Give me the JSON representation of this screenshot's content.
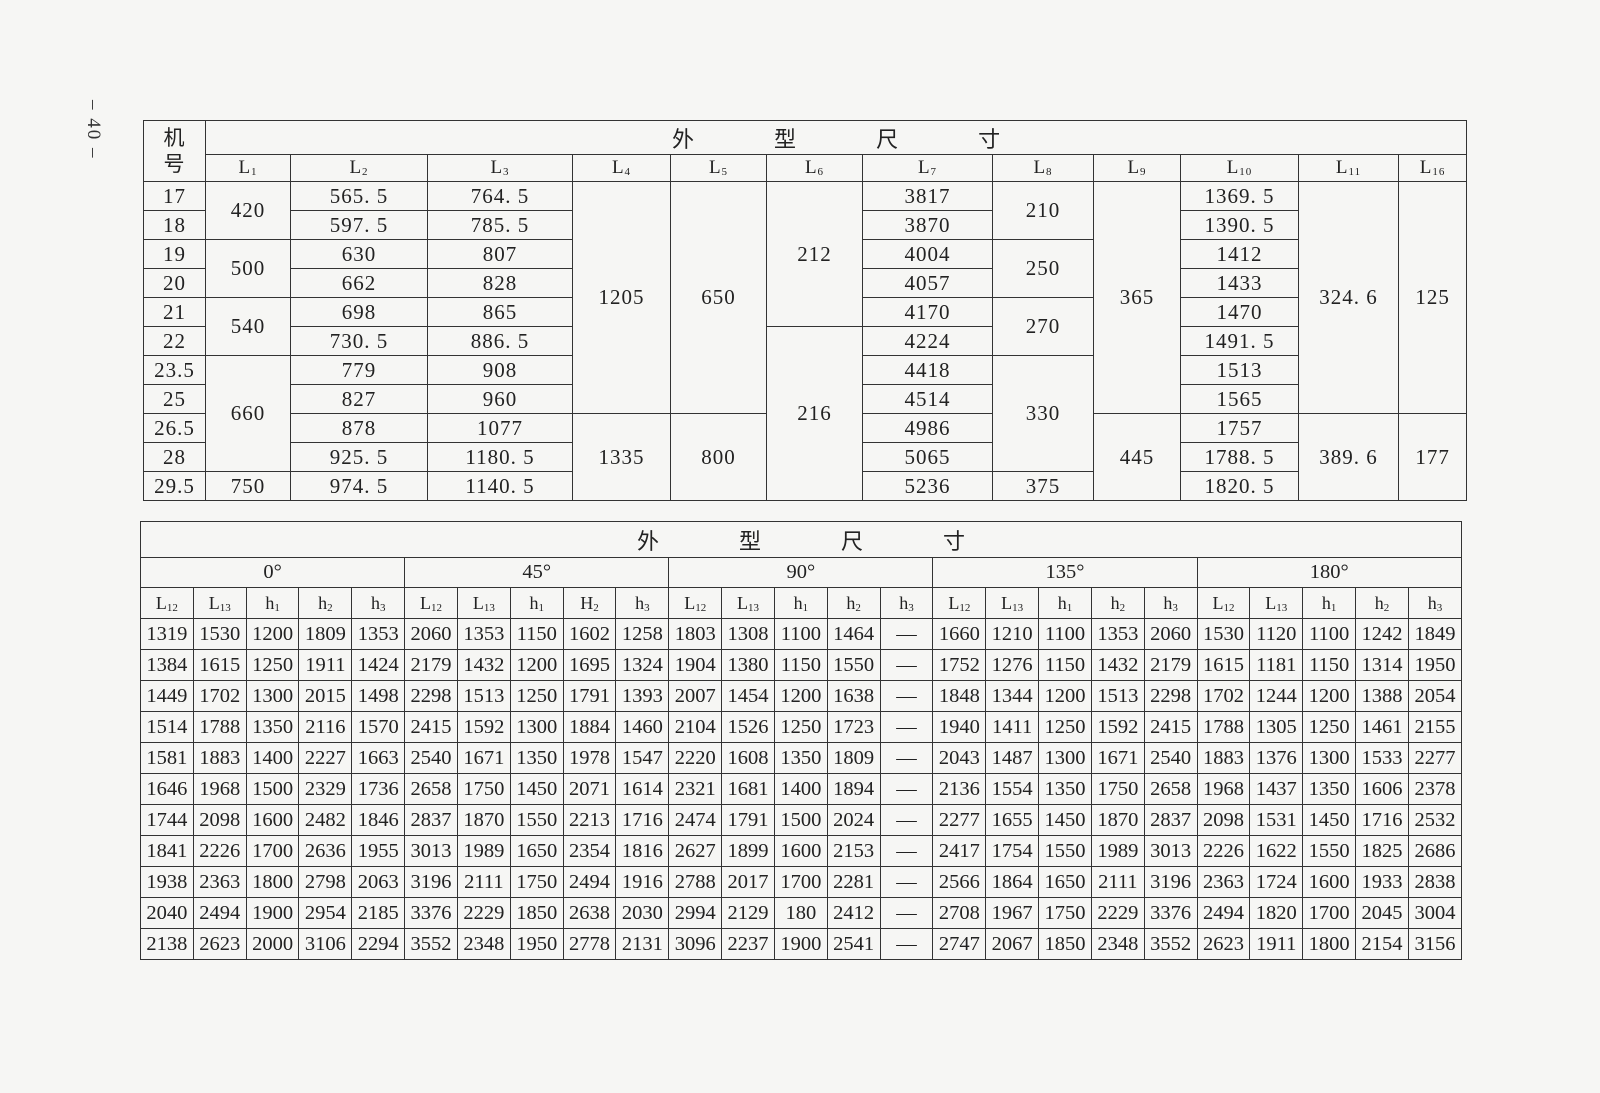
{
  "page_number": "– 40 –",
  "top_table": {
    "row_header_label": [
      "机",
      "号"
    ],
    "title": [
      "外",
      "型",
      "尺",
      "寸"
    ],
    "machine_numbers": [
      "17",
      "18",
      "19",
      "20",
      "21",
      "22",
      "23.5",
      "25",
      "26.5",
      "28",
      "29.5"
    ],
    "columns": [
      {
        "header": {
          "base": "L",
          "sub": "1"
        },
        "cells": [
          {
            "v": "420",
            "span": 2
          },
          {
            "v": "500",
            "span": 2
          },
          {
            "v": "540",
            "span": 2
          },
          {
            "v": "660",
            "span": 4
          },
          {
            "v": "750",
            "span": 1
          }
        ]
      },
      {
        "header": {
          "base": "L",
          "sub": "2"
        },
        "cells": [
          {
            "v": "565. 5"
          },
          {
            "v": "597. 5"
          },
          {
            "v": "630"
          },
          {
            "v": "662"
          },
          {
            "v": "698"
          },
          {
            "v": "730. 5"
          },
          {
            "v": "779"
          },
          {
            "v": "827"
          },
          {
            "v": "878"
          },
          {
            "v": "925. 5"
          },
          {
            "v": "974. 5"
          }
        ]
      },
      {
        "header": {
          "base": "L",
          "sub": "3"
        },
        "cells": [
          {
            "v": "764. 5"
          },
          {
            "v": "785. 5"
          },
          {
            "v": "807"
          },
          {
            "v": "828"
          },
          {
            "v": "865"
          },
          {
            "v": "886. 5"
          },
          {
            "v": "908"
          },
          {
            "v": "960"
          },
          {
            "v": "1077"
          },
          {
            "v": "1180. 5"
          },
          {
            "v": "1140. 5"
          }
        ]
      },
      {
        "header": {
          "base": "L",
          "sub": "4"
        },
        "cells": [
          {
            "v": "1205",
            "span": 8
          },
          {
            "v": "1335",
            "span": 3
          }
        ]
      },
      {
        "header": {
          "base": "L",
          "sub": "5"
        },
        "cells": [
          {
            "v": "650",
            "span": 8
          },
          {
            "v": "800",
            "span": 3
          }
        ]
      },
      {
        "header": {
          "base": "L",
          "sub": "6"
        },
        "cells": [
          {
            "v": "212",
            "span": 5
          },
          {
            "v": "216",
            "span": 6
          }
        ]
      },
      {
        "header": {
          "base": "L",
          "sub": "7"
        },
        "cells": [
          {
            "v": "3817"
          },
          {
            "v": "3870"
          },
          {
            "v": "4004"
          },
          {
            "v": "4057"
          },
          {
            "v": "4170"
          },
          {
            "v": "4224"
          },
          {
            "v": "4418"
          },
          {
            "v": "4514"
          },
          {
            "v": "4986"
          },
          {
            "v": "5065"
          },
          {
            "v": "5236"
          }
        ]
      },
      {
        "header": {
          "base": "L",
          "sub": "8"
        },
        "cells": [
          {
            "v": "210",
            "span": 2
          },
          {
            "v": "250",
            "span": 2
          },
          {
            "v": "270",
            "span": 2
          },
          {
            "v": "330",
            "span": 4
          },
          {
            "v": "375",
            "span": 1
          }
        ]
      },
      {
        "header": {
          "base": "L",
          "sub": "9"
        },
        "cells": [
          {
            "v": "365",
            "span": 8
          },
          {
            "v": "445",
            "span": 3
          }
        ]
      },
      {
        "header": {
          "base": "L",
          "sub": "10"
        },
        "cells": [
          {
            "v": "1369. 5"
          },
          {
            "v": "1390. 5"
          },
          {
            "v": "1412"
          },
          {
            "v": "1433"
          },
          {
            "v": "1470"
          },
          {
            "v": "1491. 5"
          },
          {
            "v": "1513"
          },
          {
            "v": "1565"
          },
          {
            "v": "1757"
          },
          {
            "v": "1788. 5"
          },
          {
            "v": "1820. 5"
          }
        ]
      },
      {
        "header": {
          "base": "L",
          "sub": "11"
        },
        "cells": [
          {
            "v": "324. 6",
            "span": 8
          },
          {
            "v": "389. 6",
            "span": 3
          }
        ]
      },
      {
        "header": {
          "base": "L",
          "sub": "16"
        },
        "cells": [
          {
            "v": "125",
            "span": 8
          },
          {
            "v": "177",
            "span": 3
          }
        ]
      }
    ]
  },
  "bottom_table": {
    "title": [
      "外",
      "型",
      "尺",
      "寸"
    ],
    "groups": [
      {
        "angle": "0°",
        "headers": [
          {
            "base": "L",
            "sub": "12"
          },
          {
            "base": "L",
            "sub": "13"
          },
          {
            "base": "h",
            "sub": "1"
          },
          {
            "base": "h",
            "sub": "2"
          },
          {
            "base": "h",
            "sub": "3"
          }
        ]
      },
      {
        "angle": "45°",
        "headers": [
          {
            "base": "L",
            "sub": "12"
          },
          {
            "base": "L",
            "sub": "13"
          },
          {
            "base": "h",
            "sub": "1"
          },
          {
            "base": "H",
            "sub": "2"
          },
          {
            "base": "h",
            "sub": "3"
          }
        ]
      },
      {
        "angle": "90°",
        "headers": [
          {
            "base": "L",
            "sub": "12"
          },
          {
            "base": "L",
            "sub": "13"
          },
          {
            "base": "h",
            "sub": "1"
          },
          {
            "base": "h",
            "sub": "2"
          },
          {
            "base": "h",
            "sub": "3"
          }
        ]
      },
      {
        "angle": "135°",
        "headers": [
          {
            "base": "L",
            "sub": "12"
          },
          {
            "base": "L",
            "sub": "13"
          },
          {
            "base": "h",
            "sub": "1"
          },
          {
            "base": "h",
            "sub": "2"
          },
          {
            "base": "h",
            "sub": "3"
          }
        ]
      },
      {
        "angle": "180°",
        "headers": [
          {
            "base": "L",
            "sub": "12"
          },
          {
            "base": "L",
            "sub": "13"
          },
          {
            "base": "h",
            "sub": "1"
          },
          {
            "base": "h",
            "sub": "2"
          },
          {
            "base": "h",
            "sub": "3"
          }
        ]
      }
    ],
    "rows": [
      [
        "1319",
        "1530",
        "1200",
        "1809",
        "1353",
        "2060",
        "1353",
        "1150",
        "1602",
        "1258",
        "1803",
        "1308",
        "1100",
        "1464",
        "—",
        "1660",
        "1210",
        "1100",
        "1353",
        "2060",
        "1530",
        "1120",
        "1100",
        "1242",
        "1849"
      ],
      [
        "1384",
        "1615",
        "1250",
        "1911",
        "1424",
        "2179",
        "1432",
        "1200",
        "1695",
        "1324",
        "1904",
        "1380",
        "1150",
        "1550",
        "—",
        "1752",
        "1276",
        "1150",
        "1432",
        "2179",
        "1615",
        "1181",
        "1150",
        "1314",
        "1950"
      ],
      [
        "1449",
        "1702",
        "1300",
        "2015",
        "1498",
        "2298",
        "1513",
        "1250",
        "1791",
        "1393",
        "2007",
        "1454",
        "1200",
        "1638",
        "—",
        "1848",
        "1344",
        "1200",
        "1513",
        "2298",
        "1702",
        "1244",
        "1200",
        "1388",
        "2054"
      ],
      [
        "1514",
        "1788",
        "1350",
        "2116",
        "1570",
        "2415",
        "1592",
        "1300",
        "1884",
        "1460",
        "2104",
        "1526",
        "1250",
        "1723",
        "—",
        "1940",
        "1411",
        "1250",
        "1592",
        "2415",
        "1788",
        "1305",
        "1250",
        "1461",
        "2155"
      ],
      [
        "1581",
        "1883",
        "1400",
        "2227",
        "1663",
        "2540",
        "1671",
        "1350",
        "1978",
        "1547",
        "2220",
        "1608",
        "1350",
        "1809",
        "—",
        "2043",
        "1487",
        "1300",
        "1671",
        "2540",
        "1883",
        "1376",
        "1300",
        "1533",
        "2277"
      ],
      [
        "1646",
        "1968",
        "1500",
        "2329",
        "1736",
        "2658",
        "1750",
        "1450",
        "2071",
        "1614",
        "2321",
        "1681",
        "1400",
        "1894",
        "—",
        "2136",
        "1554",
        "1350",
        "1750",
        "2658",
        "1968",
        "1437",
        "1350",
        "1606",
        "2378"
      ],
      [
        "1744",
        "2098",
        "1600",
        "2482",
        "1846",
        "2837",
        "1870",
        "1550",
        "2213",
        "1716",
        "2474",
        "1791",
        "1500",
        "2024",
        "—",
        "2277",
        "1655",
        "1450",
        "1870",
        "2837",
        "2098",
        "1531",
        "1450",
        "1716",
        "2532"
      ],
      [
        "1841",
        "2226",
        "1700",
        "2636",
        "1955",
        "3013",
        "1989",
        "1650",
        "2354",
        "1816",
        "2627",
        "1899",
        "1600",
        "2153",
        "—",
        "2417",
        "1754",
        "1550",
        "1989",
        "3013",
        "2226",
        "1622",
        "1550",
        "1825",
        "2686"
      ],
      [
        "1938",
        "2363",
        "1800",
        "2798",
        "2063",
        "3196",
        "2111",
        "1750",
        "2494",
        "1916",
        "2788",
        "2017",
        "1700",
        "2281",
        "—",
        "2566",
        "1864",
        "1650",
        "2111",
        "3196",
        "2363",
        "1724",
        "1600",
        "1933",
        "2838"
      ],
      [
        "2040",
        "2494",
        "1900",
        "2954",
        "2185",
        "3376",
        "2229",
        "1850",
        "2638",
        "2030",
        "2994",
        "2129",
        "180",
        "2412",
        "—",
        "2708",
        "1967",
        "1750",
        "2229",
        "3376",
        "2494",
        "1820",
        "1700",
        "2045",
        "3004"
      ],
      [
        "2138",
        "2623",
        "2000",
        "3106",
        "2294",
        "3552",
        "2348",
        "1950",
        "2778",
        "2131",
        "3096",
        "2237",
        "1900",
        "2541",
        "—",
        "2747",
        "2067",
        "1850",
        "2348",
        "3552",
        "2623",
        "1911",
        "1800",
        "2154",
        "3156"
      ]
    ]
  }
}
